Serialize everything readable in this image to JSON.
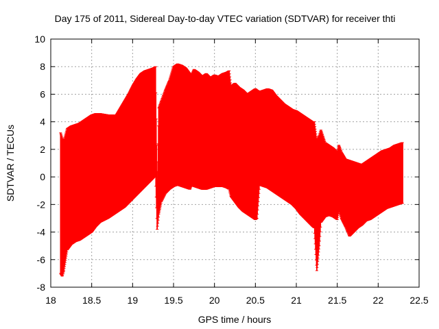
{
  "chart_data": {
    "type": "scatter",
    "title": "Day 175 of 2011, Sidereal Day-to-day VTEC variation (SDTVAR) for receiver thti",
    "xlabel": "GPS time / hours",
    "ylabel": "SDTVAR / TECUs",
    "xlim": [
      18,
      22.5
    ],
    "ylim": [
      -8,
      10
    ],
    "x_ticks": [
      "18",
      "18.5",
      "19",
      "19.5",
      "20",
      "20.5",
      "21",
      "21.5",
      "22",
      "22.5"
    ],
    "y_ticks": [
      "-8",
      "-6",
      "-4",
      "-2",
      "0",
      "2",
      "4",
      "6",
      "8",
      "10"
    ],
    "grid": true,
    "series_color": "#ff0000",
    "series": [
      {
        "x": [
          18.12,
          18.14,
          18.16,
          18.2,
          18.25,
          18.3,
          18.35,
          18.4,
          18.45,
          18.5,
          18.55,
          18.6,
          18.7,
          18.8,
          18.9,
          18.95,
          19.0,
          19.05,
          19.1,
          19.15,
          19.2,
          19.25,
          19.28,
          19.3,
          19.32,
          19.35,
          19.4,
          19.45,
          19.5,
          19.55,
          19.6,
          19.65,
          19.7,
          19.72,
          19.75,
          19.8,
          19.85,
          19.9,
          19.95,
          20.0,
          20.05,
          20.1,
          20.15,
          20.18,
          20.2,
          20.25,
          20.3,
          20.35,
          20.4,
          20.45,
          20.5,
          20.52,
          20.55,
          20.6,
          20.65,
          20.7,
          20.75,
          20.8,
          20.85,
          20.9,
          20.95,
          21.0,
          21.05,
          21.1,
          21.15,
          21.2,
          21.22,
          21.25,
          21.28,
          21.3,
          21.35,
          21.4,
          21.45,
          21.5,
          21.52,
          21.55,
          21.6,
          21.65,
          21.7,
          21.75,
          21.8,
          21.85,
          21.9,
          21.95,
          22.0,
          22.05,
          22.1,
          22.15,
          22.2,
          22.25,
          22.3
        ],
        "y_high": [
          3.2,
          2.8,
          2.6,
          3.5,
          3.7,
          3.8,
          3.9,
          4.1,
          4.3,
          4.5,
          4.6,
          4.6,
          4.5,
          4.5,
          5.5,
          6.0,
          6.6,
          7.1,
          7.5,
          7.7,
          7.8,
          7.9,
          8.0,
          -1.5,
          5.0,
          5.5,
          6.3,
          7.0,
          8.0,
          8.2,
          8.1,
          7.9,
          7.5,
          7.4,
          7.8,
          7.6,
          7.3,
          7.5,
          7.2,
          7.4,
          7.3,
          7.5,
          7.6,
          7.7,
          6.6,
          6.8,
          6.5,
          6.3,
          6.0,
          6.2,
          6.4,
          6.3,
          6.2,
          6.3,
          6.4,
          6.3,
          5.9,
          5.6,
          5.3,
          5.1,
          4.9,
          4.8,
          4.6,
          4.4,
          4.2,
          4.0,
          4.0,
          2.6,
          3.0,
          3.4,
          2.5,
          2.3,
          2.1,
          1.8,
          2.3,
          1.8,
          1.3,
          1.2,
          1.1,
          1.0,
          0.9,
          1.1,
          1.3,
          1.5,
          1.7,
          1.9,
          2.0,
          2.1,
          2.3,
          2.4,
          2.5
        ],
        "y_low": [
          -7.0,
          -7.2,
          -6.8,
          -5.3,
          -4.9,
          -4.7,
          -4.6,
          -4.4,
          -4.2,
          -4.0,
          -3.6,
          -3.3,
          -3.0,
          -2.6,
          -2.2,
          -1.9,
          -1.6,
          -1.3,
          -1.0,
          -0.7,
          -0.4,
          -0.1,
          0.1,
          -3.8,
          -2.7,
          -1.8,
          -1.2,
          -0.9,
          -0.7,
          -0.6,
          -0.7,
          -0.8,
          -0.9,
          -0.6,
          -0.7,
          -0.8,
          -0.9,
          -0.9,
          -0.8,
          -0.7,
          -0.7,
          -0.7,
          -0.8,
          -0.9,
          -1.4,
          -1.8,
          -2.2,
          -2.5,
          -2.7,
          -2.9,
          -3.1,
          -3.0,
          -0.6,
          -0.7,
          -0.8,
          -1.0,
          -1.2,
          -1.4,
          -1.6,
          -1.8,
          -2.0,
          -2.3,
          -2.7,
          -3.0,
          -3.3,
          -3.6,
          -3.7,
          -6.8,
          -5.0,
          -3.3,
          -2.9,
          -2.8,
          -2.9,
          -3.1,
          -2.4,
          -3.0,
          -3.6,
          -4.3,
          -4.0,
          -3.7,
          -3.5,
          -3.2,
          -3.1,
          -2.9,
          -2.7,
          -2.5,
          -2.3,
          -2.2,
          -2.1,
          -2.0,
          -1.9
        ]
      }
    ]
  }
}
